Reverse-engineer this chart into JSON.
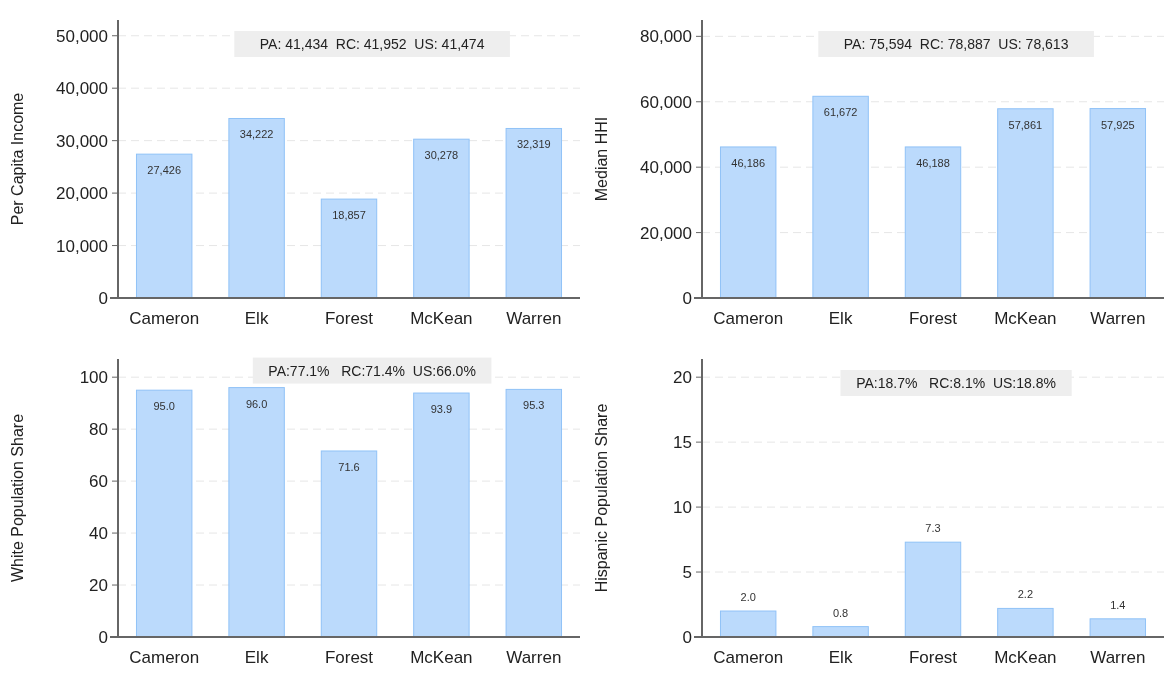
{
  "chart_data": [
    {
      "type": "bar",
      "ylabel": "Per Capita Income",
      "categories": [
        "Cameron",
        "Elk",
        "Forest",
        "McKean",
        "Warren"
      ],
      "values": [
        27426,
        34222,
        18857,
        30278,
        32319
      ],
      "value_labels": [
        "27,426",
        "34,222",
        "18,857",
        "30,278",
        "32,319"
      ],
      "color": "#bbdafc",
      "ylim": [
        0,
        53000
      ],
      "yticks": [
        0,
        {
          "value": 10000,
          "label": "10,000"
        },
        {
          "value": 20000,
          "label": "20,000"
        },
        {
          "value": 30000,
          "label": "30,000"
        },
        {
          "value": 40000,
          "label": "40,000"
        },
        {
          "value": 50000,
          "label": "50,000"
        }
      ],
      "grid": "y",
      "annotations": [
        "PA: 41,434  RC: 41,952  US: 41,474"
      ]
    },
    {
      "type": "bar",
      "ylabel": "Median HHI",
      "categories": [
        "Cameron",
        "Elk",
        "Forest",
        "McKean",
        "Warren"
      ],
      "values": [
        46186,
        61672,
        46188,
        57861,
        57925
      ],
      "value_labels": [
        "46,186",
        "61,672",
        "46,188",
        "57,861",
        "57,925"
      ],
      "color": "#bbdafc",
      "ylim": [
        0,
        85000
      ],
      "yticks": [
        0,
        {
          "value": 20000,
          "label": "20,000"
        },
        {
          "value": 40000,
          "label": "40,000"
        },
        {
          "value": 60000,
          "label": "60,000"
        },
        {
          "value": 80000,
          "label": "80,000"
        }
      ],
      "grid": "y",
      "annotations": [
        "PA: 75,594  RC: 78,887  US: 78,613"
      ]
    },
    {
      "type": "bar",
      "ylabel": "White Population Share",
      "categories": [
        "Cameron",
        "Elk",
        "Forest",
        "McKean",
        "Warren"
      ],
      "values": [
        95.0,
        96.0,
        71.6,
        93.9,
        95.3
      ],
      "value_labels": [
        "95.0",
        "96.0",
        "71.6",
        "93.9",
        "95.3"
      ],
      "color": "#bbdafc",
      "ylim": [
        0,
        107
      ],
      "yticks": [
        0,
        20,
        40,
        60,
        80,
        100
      ],
      "grid": "y",
      "annotations": [
        "PA:77.1%   RC:71.4%  US:66.0%"
      ]
    },
    {
      "type": "bar",
      "ylabel": "Hispanic Population Share",
      "categories": [
        "Cameron",
        "Elk",
        "Forest",
        "McKean",
        "Warren"
      ],
      "values": [
        2.0,
        0.8,
        7.3,
        2.2,
        1.4
      ],
      "value_labels": [
        "2.0",
        "0.8",
        "7.3",
        "2.2",
        "1.4"
      ],
      "color": "#bbdafc",
      "ylim": [
        0,
        21.4
      ],
      "yticks": [
        0,
        5,
        10,
        15,
        20
      ],
      "grid": "y",
      "annotations": [
        "PA:18.7%   RC:8.1%  US:18.8%"
      ]
    }
  ]
}
